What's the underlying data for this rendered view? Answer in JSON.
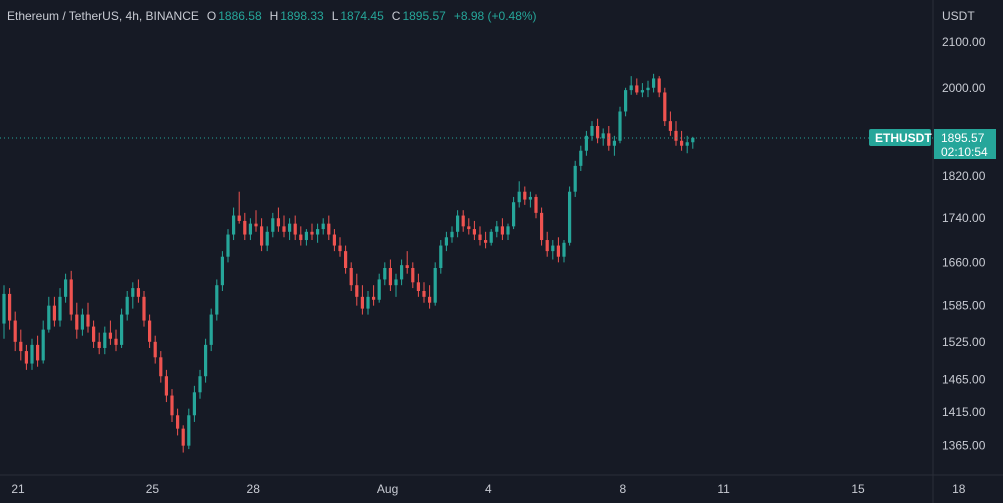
{
  "header": {
    "symbol": "Ethereum / TetherUS",
    "interval": "4h",
    "exchange": "BINANCE",
    "open_key": "O",
    "open": "1886.58",
    "high_key": "H",
    "high": "1898.33",
    "low_key": "L",
    "low": "1874.45",
    "close_key": "C",
    "close": "1895.57",
    "change": "+8.98 (+0.48%)"
  },
  "price_axis": {
    "currency": "USDT"
  },
  "last_price": {
    "ticker": "ETHUSDT",
    "price": "1895.57",
    "countdown": "02:10:54"
  },
  "colors": {
    "background": "#161a25",
    "up": "#26a69a",
    "down": "#ef5350",
    "axis_text": "#c8cbd3",
    "badge": "#26a69a"
  },
  "chart_data": {
    "type": "candlestick",
    "ylim": [
      1330,
      2150
    ],
    "yticks": [
      2100,
      2000,
      1820,
      1740,
      1660,
      1585,
      1525,
      1465,
      1415,
      1365
    ],
    "ytick_labels": [
      "2100.00",
      "2000.00",
      "1820.00",
      "1740.00",
      "1660.00",
      "1585.00",
      "1525.00",
      "1465.00",
      "1415.00",
      "1365.00"
    ],
    "xticks": [
      {
        "label": "21",
        "index": 0
      },
      {
        "label": "25",
        "index": 24
      },
      {
        "label": "28",
        "index": 42
      },
      {
        "label": "Aug",
        "index": 66
      },
      {
        "label": "4",
        "index": 84
      },
      {
        "label": "8",
        "index": 108
      },
      {
        "label": "11",
        "index": 126
      },
      {
        "label": "15",
        "index": 150
      },
      {
        "label": "18",
        "index": 168
      }
    ],
    "last_price": 1895.57,
    "ohlc": [
      [
        1555,
        1620,
        1530,
        1605
      ],
      [
        1605,
        1615,
        1545,
        1560
      ],
      [
        1560,
        1575,
        1510,
        1525
      ],
      [
        1525,
        1545,
        1495,
        1510
      ],
      [
        1510,
        1520,
        1480,
        1490
      ],
      [
        1490,
        1530,
        1480,
        1520
      ],
      [
        1520,
        1535,
        1485,
        1495
      ],
      [
        1495,
        1560,
        1490,
        1545
      ],
      [
        1545,
        1600,
        1540,
        1585
      ],
      [
        1585,
        1600,
        1550,
        1560
      ],
      [
        1560,
        1615,
        1550,
        1600
      ],
      [
        1600,
        1640,
        1590,
        1630
      ],
      [
        1630,
        1645,
        1560,
        1570
      ],
      [
        1570,
        1590,
        1530,
        1545
      ],
      [
        1545,
        1580,
        1535,
        1570
      ],
      [
        1570,
        1590,
        1540,
        1550
      ],
      [
        1550,
        1560,
        1515,
        1525
      ],
      [
        1525,
        1540,
        1505,
        1515
      ],
      [
        1515,
        1550,
        1505,
        1540
      ],
      [
        1540,
        1560,
        1520,
        1530
      ],
      [
        1530,
        1545,
        1510,
        1520
      ],
      [
        1520,
        1580,
        1515,
        1570
      ],
      [
        1570,
        1610,
        1560,
        1600
      ],
      [
        1600,
        1625,
        1580,
        1615
      ],
      [
        1615,
        1630,
        1590,
        1600
      ],
      [
        1600,
        1610,
        1550,
        1560
      ],
      [
        1560,
        1570,
        1515,
        1525
      ],
      [
        1525,
        1535,
        1490,
        1500
      ],
      [
        1500,
        1510,
        1460,
        1470
      ],
      [
        1470,
        1480,
        1430,
        1440
      ],
      [
        1440,
        1450,
        1400,
        1410
      ],
      [
        1410,
        1420,
        1380,
        1390
      ],
      [
        1390,
        1395,
        1355,
        1365
      ],
      [
        1365,
        1420,
        1360,
        1410
      ],
      [
        1410,
        1455,
        1400,
        1445
      ],
      [
        1445,
        1480,
        1435,
        1470
      ],
      [
        1470,
        1530,
        1460,
        1520
      ],
      [
        1520,
        1580,
        1510,
        1570
      ],
      [
        1570,
        1630,
        1560,
        1620
      ],
      [
        1620,
        1680,
        1610,
        1670
      ],
      [
        1670,
        1720,
        1660,
        1710
      ],
      [
        1710,
        1760,
        1700,
        1745
      ],
      [
        1745,
        1790,
        1730,
        1735
      ],
      [
        1735,
        1750,
        1700,
        1710
      ],
      [
        1710,
        1740,
        1700,
        1730
      ],
      [
        1730,
        1755,
        1715,
        1725
      ],
      [
        1725,
        1740,
        1680,
        1690
      ],
      [
        1690,
        1725,
        1680,
        1715
      ],
      [
        1715,
        1750,
        1705,
        1740
      ],
      [
        1740,
        1760,
        1715,
        1725
      ],
      [
        1725,
        1745,
        1705,
        1715
      ],
      [
        1715,
        1740,
        1700,
        1730
      ],
      [
        1730,
        1745,
        1700,
        1710
      ],
      [
        1710,
        1725,
        1690,
        1700
      ],
      [
        1700,
        1720,
        1690,
        1715
      ],
      [
        1715,
        1730,
        1700,
        1710
      ],
      [
        1710,
        1730,
        1695,
        1720
      ],
      [
        1720,
        1740,
        1710,
        1730
      ],
      [
        1730,
        1745,
        1700,
        1710
      ],
      [
        1710,
        1720,
        1680,
        1690
      ],
      [
        1690,
        1705,
        1670,
        1680
      ],
      [
        1680,
        1690,
        1640,
        1650
      ],
      [
        1650,
        1660,
        1610,
        1620
      ],
      [
        1620,
        1640,
        1585,
        1600
      ],
      [
        1600,
        1620,
        1570,
        1580
      ],
      [
        1580,
        1610,
        1570,
        1600
      ],
      [
        1600,
        1620,
        1585,
        1595
      ],
      [
        1595,
        1640,
        1590,
        1630
      ],
      [
        1630,
        1660,
        1620,
        1650
      ],
      [
        1650,
        1665,
        1610,
        1620
      ],
      [
        1620,
        1640,
        1600,
        1630
      ],
      [
        1630,
        1665,
        1620,
        1655
      ],
      [
        1655,
        1680,
        1640,
        1650
      ],
      [
        1650,
        1660,
        1615,
        1625
      ],
      [
        1625,
        1640,
        1600,
        1610
      ],
      [
        1610,
        1625,
        1590,
        1600
      ],
      [
        1600,
        1620,
        1580,
        1590
      ],
      [
        1590,
        1660,
        1585,
        1650
      ],
      [
        1650,
        1700,
        1640,
        1690
      ],
      [
        1690,
        1715,
        1680,
        1705
      ],
      [
        1705,
        1725,
        1695,
        1715
      ],
      [
        1715,
        1755,
        1705,
        1745
      ],
      [
        1745,
        1755,
        1715,
        1725
      ],
      [
        1725,
        1740,
        1710,
        1720
      ],
      [
        1720,
        1735,
        1700,
        1710
      ],
      [
        1710,
        1725,
        1690,
        1700
      ],
      [
        1700,
        1715,
        1685,
        1695
      ],
      [
        1695,
        1720,
        1690,
        1715
      ],
      [
        1715,
        1735,
        1705,
        1725
      ],
      [
        1725,
        1740,
        1700,
        1710
      ],
      [
        1710,
        1730,
        1700,
        1725
      ],
      [
        1725,
        1780,
        1720,
        1770
      ],
      [
        1770,
        1810,
        1760,
        1790
      ],
      [
        1790,
        1800,
        1765,
        1775
      ],
      [
        1775,
        1790,
        1760,
        1780
      ],
      [
        1780,
        1785,
        1740,
        1750
      ],
      [
        1750,
        1760,
        1690,
        1700
      ],
      [
        1700,
        1715,
        1670,
        1680
      ],
      [
        1680,
        1700,
        1665,
        1690
      ],
      [
        1690,
        1705,
        1660,
        1670
      ],
      [
        1670,
        1700,
        1660,
        1695
      ],
      [
        1695,
        1800,
        1690,
        1790
      ],
      [
        1790,
        1850,
        1780,
        1840
      ],
      [
        1840,
        1880,
        1830,
        1870
      ],
      [
        1870,
        1910,
        1860,
        1900
      ],
      [
        1900,
        1930,
        1890,
        1920
      ],
      [
        1920,
        1935,
        1885,
        1895
      ],
      [
        1895,
        1915,
        1880,
        1905
      ],
      [
        1905,
        1920,
        1870,
        1880
      ],
      [
        1880,
        1900,
        1860,
        1890
      ],
      [
        1890,
        1960,
        1885,
        1950
      ],
      [
        1950,
        2000,
        1940,
        1995
      ],
      [
        1995,
        2025,
        1985,
        2005
      ],
      [
        2005,
        2020,
        1985,
        1990
      ],
      [
        1990,
        2010,
        1980,
        1995
      ],
      [
        1995,
        2015,
        1980,
        2000
      ],
      [
        2000,
        2030,
        1990,
        2020
      ],
      [
        2020,
        2025,
        1980,
        1990
      ],
      [
        1990,
        2000,
        1920,
        1930
      ],
      [
        1930,
        1950,
        1900,
        1910
      ],
      [
        1910,
        1930,
        1880,
        1890
      ],
      [
        1890,
        1910,
        1870,
        1880
      ],
      [
        1880,
        1900,
        1865,
        1887
      ],
      [
        1887,
        1898,
        1874,
        1896
      ]
    ]
  }
}
